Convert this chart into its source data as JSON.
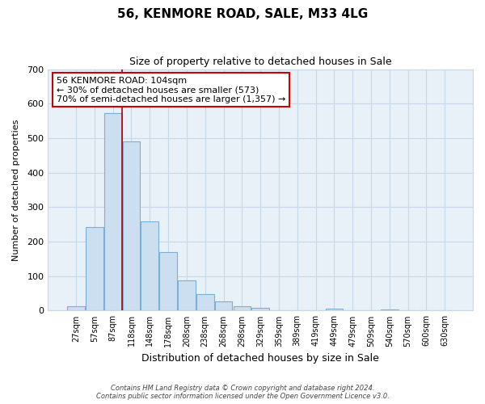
{
  "title": "56, KENMORE ROAD, SALE, M33 4LG",
  "subtitle": "Size of property relative to detached houses in Sale",
  "xlabel": "Distribution of detached houses by size in Sale",
  "ylabel": "Number of detached properties",
  "bar_labels": [
    "27sqm",
    "57sqm",
    "87sqm",
    "118sqm",
    "148sqm",
    "178sqm",
    "208sqm",
    "238sqm",
    "268sqm",
    "298sqm",
    "329sqm",
    "359sqm",
    "389sqm",
    "419sqm",
    "449sqm",
    "479sqm",
    "509sqm",
    "540sqm",
    "570sqm",
    "600sqm",
    "630sqm"
  ],
  "bar_values": [
    12,
    243,
    573,
    491,
    258,
    169,
    88,
    47,
    27,
    13,
    8,
    0,
    0,
    0,
    5,
    0,
    0,
    4,
    0,
    0,
    0
  ],
  "bar_fill_color": "#ccdff0",
  "bar_edge_color": "#7ab0d4",
  "vline_x": 2.5,
  "vline_color": "#aa0000",
  "annotation_line1": "56 KENMORE ROAD: 104sqm",
  "annotation_line2": "← 30% of detached houses are smaller (573)",
  "annotation_line3": "70% of semi-detached houses are larger (1,357) →",
  "annotation_box_facecolor": "#ffffff",
  "annotation_box_edgecolor": "#cc0000",
  "ylim": [
    0,
    700
  ],
  "yticks": [
    0,
    100,
    200,
    300,
    400,
    500,
    600,
    700
  ],
  "grid_color": "#c8d8e8",
  "bg_color": "#e8f0f8",
  "footer_line1": "Contains HM Land Registry data © Crown copyright and database right 2024.",
  "footer_line2": "Contains public sector information licensed under the Open Government Licence v3.0."
}
